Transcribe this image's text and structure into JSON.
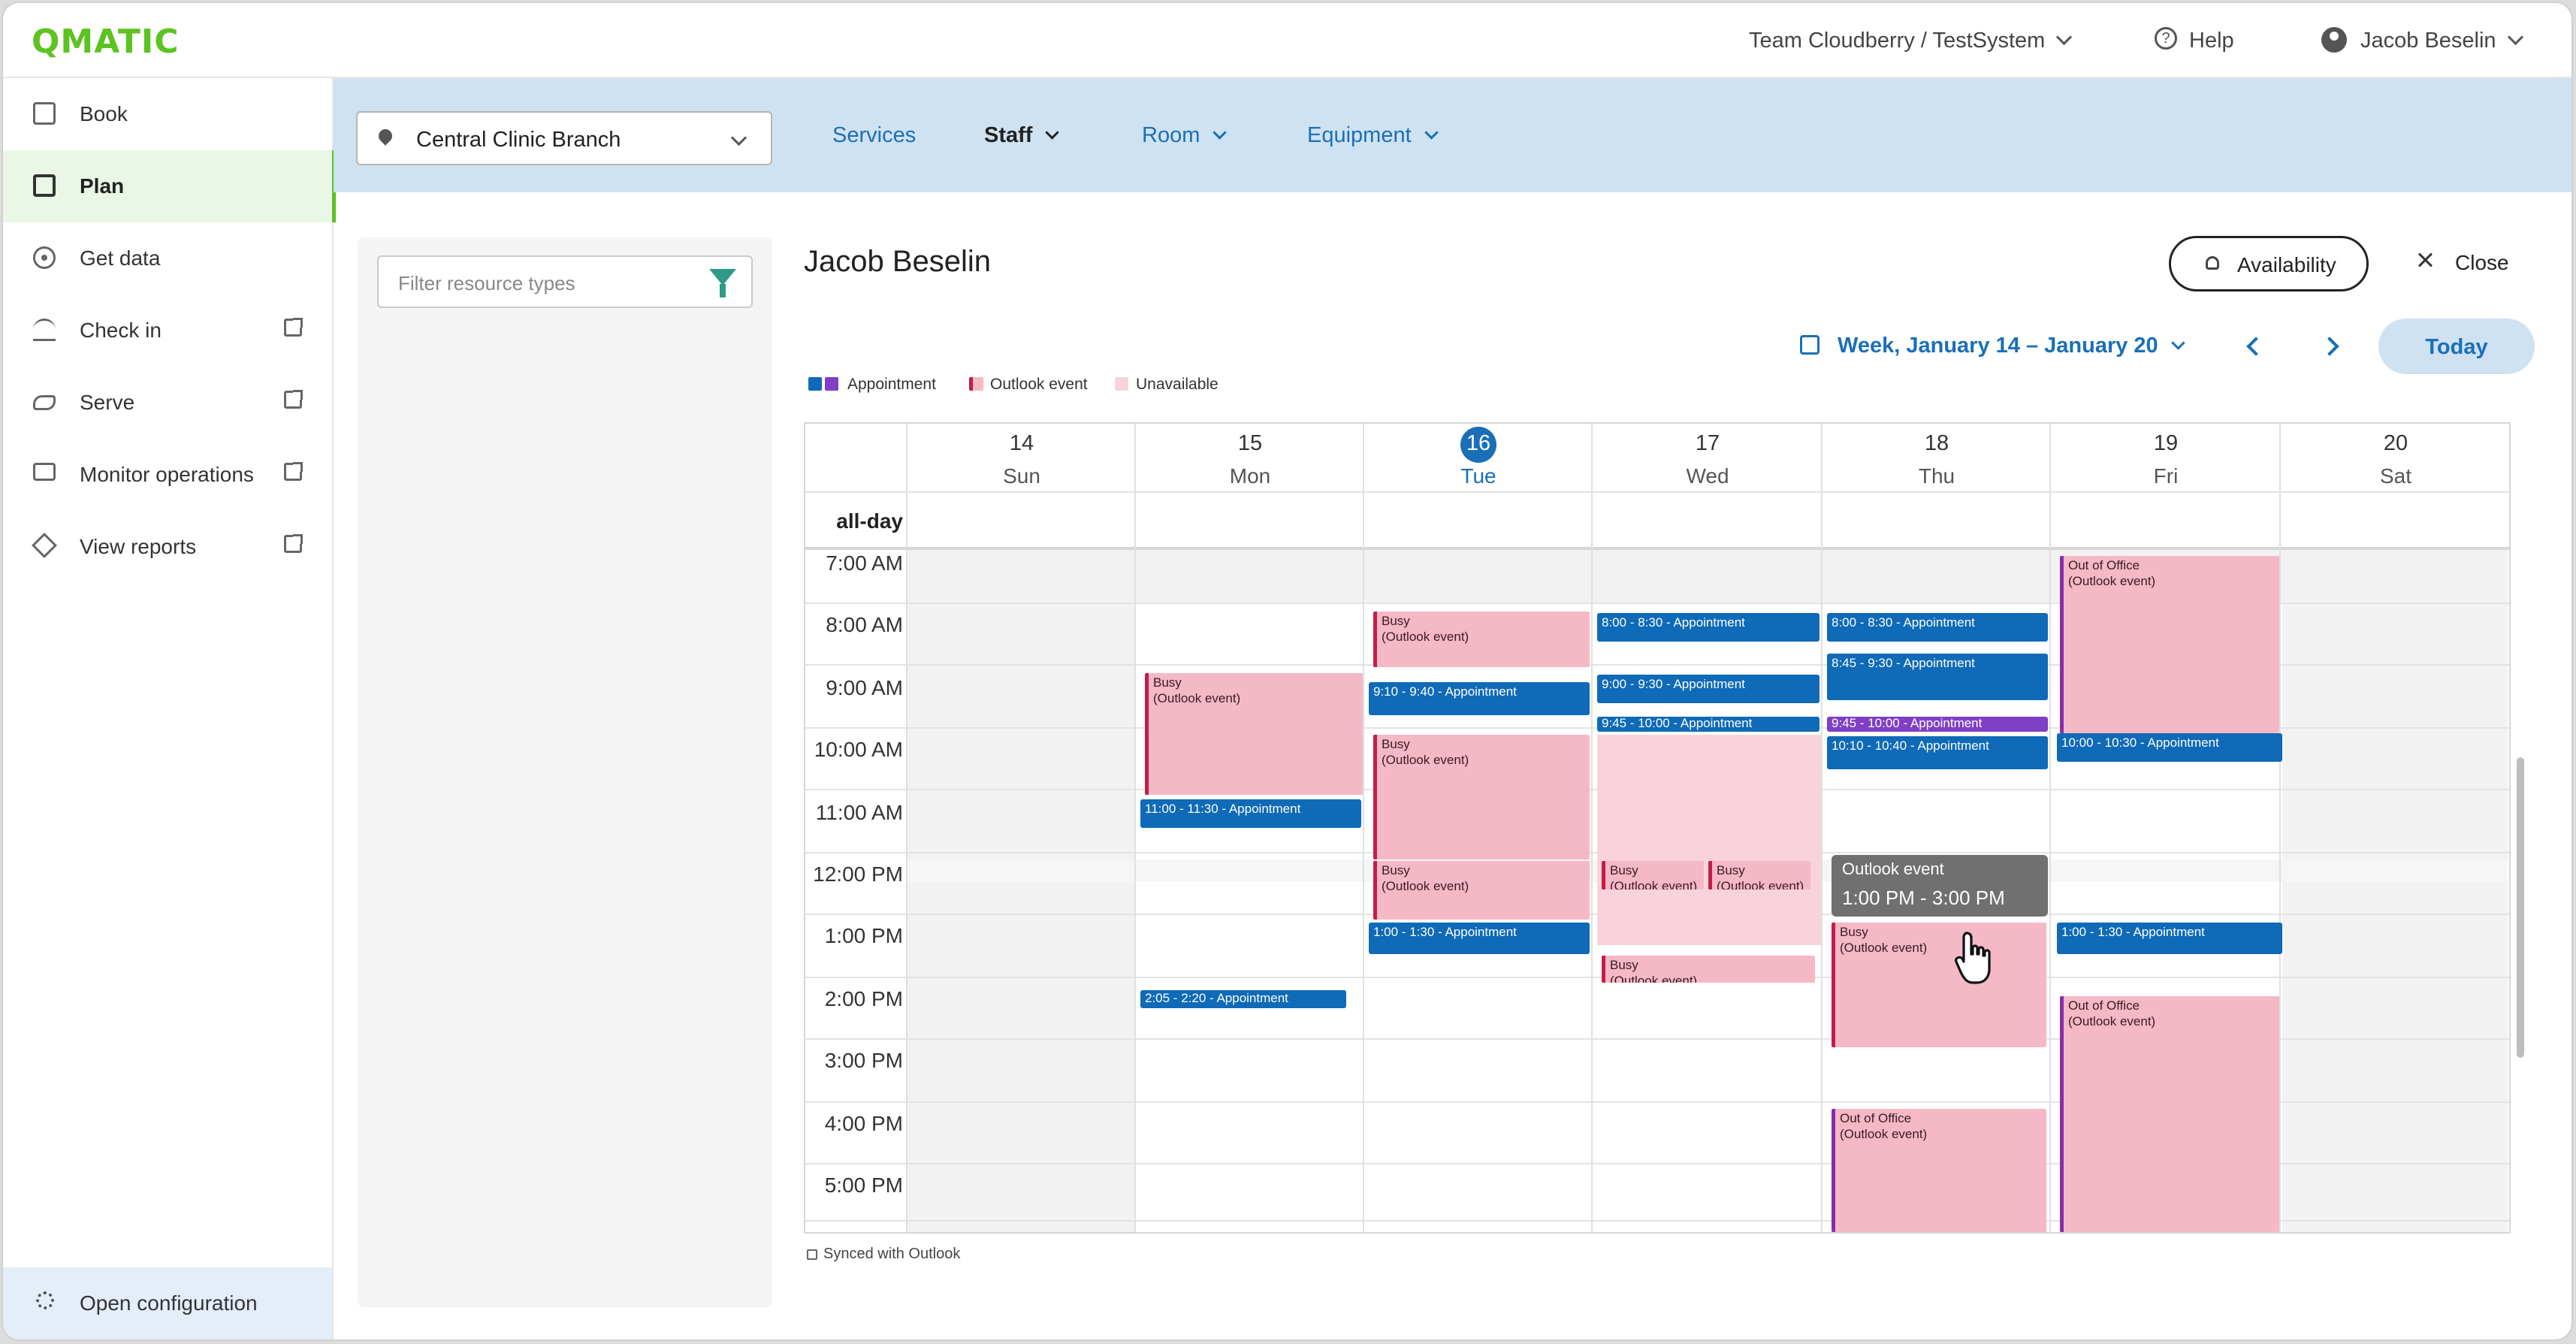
{
  "app": {
    "logo": "QMATIC",
    "team": "Team Cloudberry / TestSystem",
    "help": "Help",
    "user": "Jacob Beselin"
  },
  "sidebar": {
    "items": [
      {
        "label": "Book",
        "icon": "calendar-check-icon",
        "external": false
      },
      {
        "label": "Plan",
        "icon": "calendar-grid-icon",
        "external": false,
        "active": true
      },
      {
        "label": "Get data",
        "icon": "target-icon",
        "external": false
      },
      {
        "label": "Check in",
        "icon": "bell-desk-icon",
        "external": true
      },
      {
        "label": "Serve",
        "icon": "handshake-icon",
        "external": true
      },
      {
        "label": "Monitor operations",
        "icon": "monitor-icon",
        "external": true
      },
      {
        "label": "View reports",
        "icon": "chart-icon",
        "external": true
      }
    ],
    "bottom": {
      "label": "Open configuration",
      "icon": "gear-icon"
    }
  },
  "header": {
    "branch": "Central Clinic Branch",
    "tabs": [
      "Services",
      "Staff",
      "Room",
      "Equipment"
    ]
  },
  "filter": {
    "placeholder": "Filter resource types"
  },
  "calendar": {
    "person": "Jacob Beselin",
    "availability": "Availability",
    "close": "Close",
    "week": "Week, January 14 – January 20",
    "today": "Today",
    "legend": {
      "appointment": "Appointment",
      "outlook": "Outlook event",
      "unavailable": "Unavailable"
    },
    "days": [
      {
        "num": "14",
        "name": "Sun"
      },
      {
        "num": "15",
        "name": "Mon"
      },
      {
        "num": "16",
        "name": "Tue"
      },
      {
        "num": "17",
        "name": "Wed"
      },
      {
        "num": "18",
        "name": "Thu"
      },
      {
        "num": "19",
        "name": "Fri"
      },
      {
        "num": "20",
        "name": "Sat"
      }
    ],
    "allday": "all-day",
    "times": [
      "7:00 AM",
      "8:00 AM",
      "9:00 AM",
      "10:00 AM",
      "11:00 AM",
      "12:00 PM",
      "1:00 PM",
      "2:00 PM",
      "3:00 PM",
      "4:00 PM",
      "5:00 PM"
    ],
    "events": {
      "mon_busy": {
        "title": "Busy",
        "sub": "(Outlook event)"
      },
      "mon_1100": "11:00 - 11:30 - Appointment",
      "mon_205": "2:05 - 2:20 - Appointment",
      "tue_busy1": {
        "title": "Busy",
        "sub": "(Outlook event)"
      },
      "tue_910": "9:10 - 9:40 - Appointment",
      "tue_busy2": {
        "title": "Busy",
        "sub": "(Outlook event)"
      },
      "tue_busy3": {
        "title": "Busy",
        "sub": "(Outlook event)"
      },
      "tue_100": "1:00 - 1:30 - Appointment",
      "wed_800": "8:00 - 8:30 - Appointment",
      "wed_900": "9:00 - 9:30 - Appointment",
      "wed_945": "9:45 - 10:00 - Appointment",
      "wed_busy1": {
        "title": "Busy",
        "sub": "(Outlook event)"
      },
      "wed_busy2": {
        "title": "Busy",
        "sub": "(Outlook event)"
      },
      "wed_busy3": {
        "title": "Busy",
        "sub": "(Outlook event)"
      },
      "thu_800": "8:00 - 8:30 - Appointment",
      "thu_845": "8:45 - 9:30 - Appointment",
      "thu_945": "9:45 - 10:00 - Appointment",
      "thu_1010": "10:10 - 10:40 - Appointment",
      "thu_busy": {
        "title": "Busy",
        "sub": "(Outlook event)"
      },
      "thu_ooo": {
        "title": "Out of Office",
        "sub": "(Outlook event)"
      },
      "fri_ooo1": {
        "title": "Out of Office",
        "sub": "(Outlook event)"
      },
      "fri_1000": "10:00 - 10:30 - Appointment",
      "fri_100": "1:00 - 1:30 - Appointment",
      "fri_ooo2": {
        "title": "Out of Office",
        "sub": "(Outlook event)"
      }
    },
    "tooltip": {
      "title": "Outlook event",
      "time": "1:00 PM - 3:00 PM"
    },
    "synced": "Synced with Outlook"
  },
  "colors": {
    "brand": "#5cc321",
    "appointment": "#0f6ab8",
    "appointment_alt": "#7f3fc6",
    "outlook": "#f5b8c6",
    "outlook_border": "#c41d48",
    "unavailable": "#f8d3db",
    "header_strip": "#cfe2f2"
  }
}
